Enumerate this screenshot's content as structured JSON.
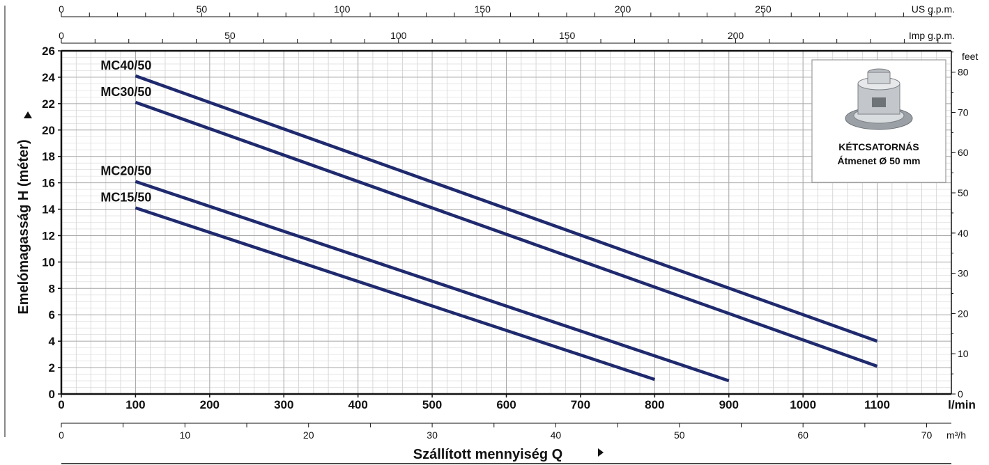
{
  "chart_data": {
    "type": "line",
    "xlabel": "Szállított mennyiség Q",
    "ylabel": "Emelómagasság H (méter)",
    "x_unit": "l/min",
    "xlim": [
      0,
      1200
    ],
    "ylim": [
      0,
      26
    ],
    "x_ticks": [
      0,
      100,
      200,
      300,
      400,
      500,
      600,
      700,
      800,
      900,
      1000,
      1100
    ],
    "y_ticks": [
      0,
      2,
      4,
      6,
      8,
      10,
      12,
      14,
      16,
      18,
      20,
      22,
      24,
      26
    ],
    "grid": true,
    "series": [
      {
        "name": "MC40/50",
        "x": [
          100,
          1100
        ],
        "y": [
          24.1,
          4.0
        ]
      },
      {
        "name": "MC30/50",
        "x": [
          100,
          1100
        ],
        "y": [
          22.1,
          2.1
        ]
      },
      {
        "name": "MC20/50",
        "x": [
          100,
          900
        ],
        "y": [
          16.1,
          1.0
        ]
      },
      {
        "name": "MC15/50",
        "x": [
          100,
          800
        ],
        "y": [
          14.1,
          1.1
        ]
      }
    ],
    "line_color": "#1f2a6e",
    "secondary_axes": {
      "us_gpm": {
        "label": "US g.p.m.",
        "ticks": [
          0,
          50,
          100,
          150,
          200,
          250
        ]
      },
      "imp_gpm": {
        "label": "Imp g.p.m.",
        "ticks": [
          0,
          50,
          100,
          150,
          200
        ]
      },
      "feet": {
        "label": "feet",
        "ticks": [
          0,
          10,
          20,
          30,
          40,
          50,
          60,
          70,
          80
        ]
      },
      "m3h": {
        "label": "m³/h",
        "ticks": [
          0,
          10,
          20,
          30,
          40,
          50,
          60,
          70
        ]
      }
    },
    "inset": {
      "line1": "KÉTCSATORNÁS",
      "line2": "Átmenet Ø 50 mm"
    }
  }
}
